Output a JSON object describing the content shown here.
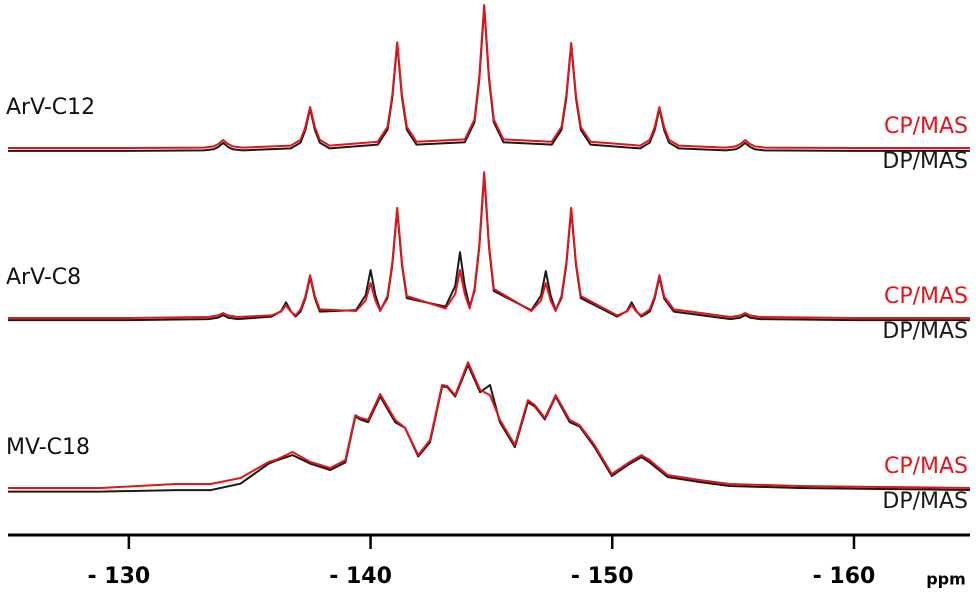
{
  "chart_data": {
    "type": "line",
    "xlabel": "ppm",
    "xlim": [
      -125,
      -164.8
    ],
    "xticks": [
      {
        "value": -130,
        "label": "- 130"
      },
      {
        "value": -140,
        "label": "- 140"
      },
      {
        "value": -150,
        "label": "- 150"
      },
      {
        "value": -160,
        "label": "- 160"
      }
    ],
    "spectra": [
      {
        "label": "ArV-C12",
        "x": [
          -125,
          -130,
          -133.1,
          -133.5,
          -133.7,
          -133.9,
          -134.1,
          -134.3,
          -134.7,
          -136.7,
          -137.1,
          -137.3,
          -137.5,
          -137.7,
          -137.9,
          -138.3,
          -140.3,
          -140.7,
          -140.9,
          -141.1,
          -141.3,
          -141.5,
          -141.9,
          -143.9,
          -144.3,
          -144.5,
          -144.7,
          -144.9,
          -145.1,
          -145.5,
          -147.5,
          -147.9,
          -148.1,
          -148.3,
          -148.5,
          -148.7,
          -149.1,
          -151.15,
          -151.55,
          -151.75,
          -151.95,
          -152.15,
          -152.35,
          -152.75,
          -154.7,
          -155.1,
          -155.3,
          -155.5,
          -155.7,
          -155.9,
          -156.3,
          -160,
          -164.8
        ],
        "series": [
          {
            "name": "CP/MAS",
            "color": "#e3141c",
            "values": [
              0,
              0,
              0.3,
              1.1,
              2.8,
              5.6,
              2.8,
              1.1,
              0.3,
              1.7,
              5.7,
              14.4,
              28.7,
              14.4,
              5.7,
              1.7,
              4.4,
              14.8,
              37,
              74,
              37,
              14.8,
              4.4,
              6,
              20,
              50,
              100,
              50,
              20,
              6,
              4.4,
              14.7,
              36.7,
              73.4,
              36.7,
              14.7,
              4.4,
              1.7,
              5.7,
              14.4,
              28.7,
              14.4,
              5.7,
              1.7,
              0.3,
              1.1,
              2.8,
              5.6,
              2.8,
              1.1,
              0.3,
              0,
              0
            ]
          },
          {
            "name": "DP/MAS",
            "color": "#1a1a1a",
            "values": [
              -2,
              -2,
              -1.7,
              -0.9,
              0.8,
              3.6,
              0.8,
              -0.9,
              -1.7,
              -0.3,
              3.7,
              12.4,
              27.5,
              12.4,
              3.7,
              -0.3,
              2.4,
              12.8,
              35,
              73,
              35,
              12.8,
              2.4,
              4,
              18,
              48,
              99,
              48,
              18,
              4,
              2.4,
              12.7,
              34.7,
              72.5,
              34.7,
              12.7,
              2.4,
              -0.3,
              3.7,
              12.4,
              27.5,
              12.4,
              3.7,
              -0.3,
              -1.7,
              -0.9,
              0.8,
              3.6,
              0.8,
              -0.9,
              -1.7,
              -2,
              -2
            ]
          }
        ]
      },
      {
        "label": "ArV-C8",
        "x": [
          -125,
          -130,
          -133.3,
          -133.7,
          -133.9,
          -134.1,
          -134.5,
          -135.9,
          -136.3,
          -136.5,
          -136.7,
          -136.9,
          -137.1,
          -137.3,
          -137.5,
          -137.7,
          -137.9,
          -139.4,
          -139.8,
          -140.0,
          -140.2,
          -140.4,
          -140.7,
          -140.9,
          -141.1,
          -141.3,
          -141.5,
          -143.1,
          -143.5,
          -143.7,
          -143.9,
          -144.1,
          -144.3,
          -144.5,
          -144.7,
          -144.9,
          -145.1,
          -146.65,
          -147.05,
          -147.25,
          -147.45,
          -147.65,
          -147.9,
          -148.1,
          -148.3,
          -148.5,
          -148.7,
          -150.2,
          -150.6,
          -150.8,
          -151.0,
          -151.2,
          -151.55,
          -151.75,
          -151.95,
          -152.15,
          -152.55,
          -154.9,
          -155.3,
          -155.5,
          -155.7,
          -156.1,
          -160,
          -164.8
        ],
        "series": [
          {
            "name": "CP/MAS",
            "color": "#e3141c",
            "values": [
              0,
              0,
              0.7,
              1.8,
              3.5,
              1.8,
              0.7,
              1.8,
              4.5,
              9,
              4.5,
              1.8,
              6,
              15,
              30,
              15,
              6,
              4.9,
              12.3,
              24.5,
              12.3,
              4.9,
              15.4,
              38.5,
              77,
              38.5,
              15.4,
              6.7,
              16.8,
              33.6,
              16.8,
              6.7,
              20.4,
              51,
              102,
              51,
              20.4,
              4.9,
              12.3,
              24.5,
              12.3,
              4.9,
              15.4,
              38.5,
              77,
              38.5,
              15.4,
              1.8,
              4.5,
              9,
              4.5,
              1.8,
              6,
              15,
              30,
              15,
              6,
              0.7,
              1.8,
              3.5,
              1.8,
              0.7,
              0,
              0
            ]
          },
          {
            "name": "DP/MAS",
            "color": "#1a1a1a",
            "values": [
              -1.5,
              -1.5,
              -0.8,
              0.3,
              2,
              0.3,
              -0.8,
              1,
              4.8,
              11,
              4.8,
              1,
              4.5,
              13.5,
              28.5,
              13.5,
              4.5,
              5.5,
              16,
              33.5,
              16,
              5.5,
              13.9,
              37,
              75.5,
              37,
              13.9,
              8,
              22.3,
              46,
              22.3,
              8,
              18.9,
              49.5,
              100.5,
              49.5,
              18.9,
              5.4,
              15.7,
              32.8,
              15.7,
              5.4,
              13.9,
              37,
              75.5,
              37,
              13.9,
              1,
              4.8,
              11,
              4.8,
              1,
              4.5,
              13.5,
              28.5,
              13.5,
              4.5,
              -0.8,
              0.3,
              2,
              0.3,
              -0.8,
              -1.5,
              -1.5
            ]
          }
        ]
      },
      {
        "label": "MV-C18",
        "x": [
          -125,
          -128.84,
          -131.94,
          -133.38,
          -134.62,
          -135.78,
          -136.07,
          -136.77,
          -137.51,
          -138.34,
          -138.96,
          -139.37,
          -139.57,
          -139.9,
          -140.4,
          -141.02,
          -141.43,
          -141.97,
          -142.46,
          -142.96,
          -143.17,
          -143.5,
          -144.03,
          -144.53,
          -144.94,
          -145.35,
          -145.97,
          -146.51,
          -146.8,
          -147.21,
          -147.66,
          -148.24,
          -148.65,
          -149.27,
          -149.98,
          -150.72,
          -151.21,
          -151.54,
          -152.29,
          -153.61,
          -154.85,
          -157.73,
          -164.8
        ],
        "series": [
          {
            "name": "CP/MAS",
            "color": "#e3141c",
            "values": [
              0,
              0,
              2.8,
              2.8,
              7,
              18.2,
              19.6,
              25.2,
              18.2,
              14,
              19.6,
              51,
              49,
              47.6,
              65.7,
              47.6,
              42,
              23.1,
              33.6,
              72,
              71.3,
              65,
              88,
              68.5,
              65,
              47.6,
              30.1,
              61.5,
              58,
              49,
              65,
              47.6,
              44,
              30,
              9.8,
              18.2,
              23,
              19.6,
              9.1,
              5.6,
              2.8,
              1.4,
              0
            ]
          },
          {
            "name": "DP/MAS",
            "color": "#1a1a1a",
            "values": [
              -2.5,
              -2.5,
              -1.5,
              -1.5,
              3,
              17,
              19,
              23,
              17,
              12.6,
              18,
              50,
              48,
              46,
              64,
              46,
              42,
              22,
              32,
              71,
              70.6,
              64,
              86,
              67,
              72,
              46,
              28.6,
              60,
              57,
              48,
              64,
              46,
              43,
              28.6,
              8.4,
              17,
              21.6,
              18,
              7.7,
              4.2,
              1.4,
              0,
              -1.4
            ]
          }
        ]
      }
    ]
  }
}
